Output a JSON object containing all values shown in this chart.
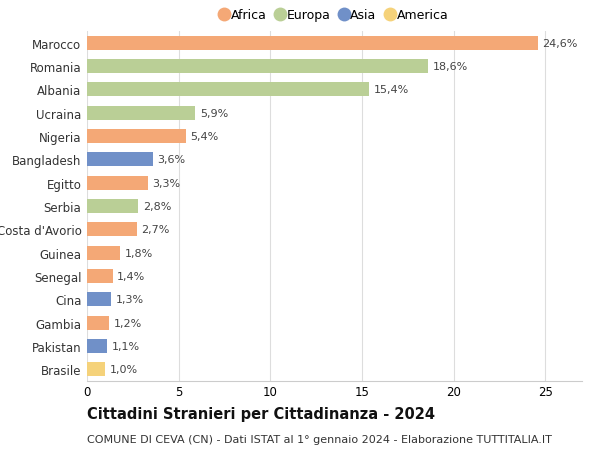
{
  "countries": [
    "Marocco",
    "Romania",
    "Albania",
    "Ucraina",
    "Nigeria",
    "Bangladesh",
    "Egitto",
    "Serbia",
    "Costa d'Avorio",
    "Guinea",
    "Senegal",
    "Cina",
    "Gambia",
    "Pakistan",
    "Brasile"
  ],
  "values": [
    24.6,
    18.6,
    15.4,
    5.9,
    5.4,
    3.6,
    3.3,
    2.8,
    2.7,
    1.8,
    1.4,
    1.3,
    1.2,
    1.1,
    1.0
  ],
  "labels": [
    "24,6%",
    "18,6%",
    "15,4%",
    "5,9%",
    "5,4%",
    "3,6%",
    "3,3%",
    "2,8%",
    "2,7%",
    "1,8%",
    "1,4%",
    "1,3%",
    "1,2%",
    "1,1%",
    "1,0%"
  ],
  "continents": [
    "Africa",
    "Europa",
    "Europa",
    "Europa",
    "Africa",
    "Asia",
    "Africa",
    "Europa",
    "Africa",
    "Africa",
    "Africa",
    "Asia",
    "Africa",
    "Asia",
    "America"
  ],
  "continent_colors": {
    "Africa": "#F4A876",
    "Europa": "#BACF96",
    "Asia": "#7090C8",
    "America": "#F5D27A"
  },
  "legend_order": [
    "Africa",
    "Europa",
    "Asia",
    "America"
  ],
  "xlim": [
    0,
    27
  ],
  "xticks": [
    0,
    5,
    10,
    15,
    20,
    25
  ],
  "title": "Cittadini Stranieri per Cittadinanza - 2024",
  "subtitle": "COMUNE DI CEVA (CN) - Dati ISTAT al 1° gennaio 2024 - Elaborazione TUTTITALIA.IT",
  "title_fontsize": 10.5,
  "subtitle_fontsize": 8,
  "background_color": "#ffffff",
  "grid_color": "#dddddd",
  "bar_height": 0.6
}
